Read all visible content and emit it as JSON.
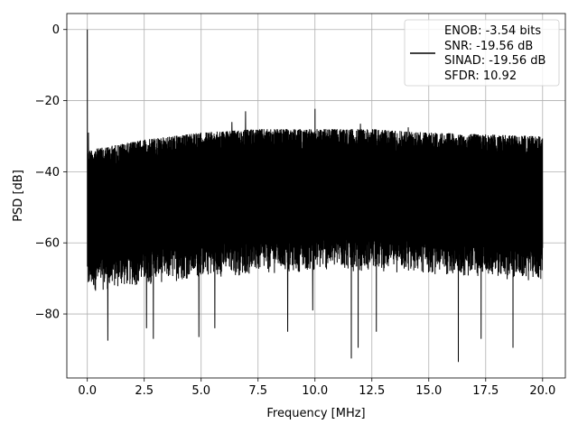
{
  "chart_data": {
    "type": "line",
    "xlabel": "Frequency [MHz]",
    "ylabel": "PSD [dB]",
    "xlim": [
      -0.9,
      21.0
    ],
    "ylim": [
      -98.0,
      4.5
    ],
    "grid": true,
    "x_ticks": [
      {
        "value": 0.0,
        "label": "0.0"
      },
      {
        "value": 2.5,
        "label": "2.5"
      },
      {
        "value": 5.0,
        "label": "5.0"
      },
      {
        "value": 7.5,
        "label": "7.5"
      },
      {
        "value": 10.0,
        "label": "10.0"
      },
      {
        "value": 12.5,
        "label": "12.5"
      },
      {
        "value": 15.0,
        "label": "15.0"
      },
      {
        "value": 17.5,
        "label": "17.5"
      },
      {
        "value": 20.0,
        "label": "20.0"
      }
    ],
    "y_ticks": [
      {
        "value": 0,
        "label": "0"
      },
      {
        "value": -20,
        "label": "−20"
      },
      {
        "value": -40,
        "label": "−40"
      },
      {
        "value": -60,
        "label": "−60"
      },
      {
        "value": -80,
        "label": "−80"
      }
    ],
    "series": [
      {
        "color": "#000000",
        "noise_band": {
          "x_start": 0.0,
          "x_end": 20.0,
          "upper_db": [
            [
              0.0,
              -34
            ],
            [
              2.5,
              -31
            ],
            [
              5.0,
              -29
            ],
            [
              7.5,
              -28
            ],
            [
              10.0,
              -28
            ],
            [
              12.5,
              -28
            ],
            [
              15.0,
              -29
            ],
            [
              17.5,
              -29.5
            ],
            [
              20.0,
              -30
            ]
          ],
          "lower_db": [
            [
              0.0,
              -74
            ],
            [
              2.5,
              -72
            ],
            [
              5.0,
              -70
            ],
            [
              7.5,
              -69
            ],
            [
              10.0,
              -68
            ],
            [
              12.5,
              -68
            ],
            [
              15.0,
              -69
            ],
            [
              17.5,
              -70
            ],
            [
              20.0,
              -71
            ]
          ]
        },
        "peaks": [
          {
            "x": 0.0,
            "y": 0.0
          },
          {
            "x": 0.05,
            "y": -29.0
          },
          {
            "x": 6.35,
            "y": -26.0
          },
          {
            "x": 6.95,
            "y": -23.0
          },
          {
            "x": 10.0,
            "y": -22.3
          },
          {
            "x": 12.0,
            "y": -26.5
          },
          {
            "x": 14.1,
            "y": -27.5
          }
        ],
        "dips": [
          {
            "x": 0.9,
            "y": -87.5
          },
          {
            "x": 2.6,
            "y": -84.0
          },
          {
            "x": 2.9,
            "y": -87.0
          },
          {
            "x": 4.9,
            "y": -86.5
          },
          {
            "x": 5.6,
            "y": -84.0
          },
          {
            "x": 8.8,
            "y": -85.0
          },
          {
            "x": 9.9,
            "y": -79.0
          },
          {
            "x": 11.6,
            "y": -92.5
          },
          {
            "x": 11.9,
            "y": -89.5
          },
          {
            "x": 12.7,
            "y": -85.0
          },
          {
            "x": 16.3,
            "y": -93.5
          },
          {
            "x": 17.3,
            "y": -87.0
          },
          {
            "x": 18.7,
            "y": -89.5
          }
        ]
      }
    ],
    "legend": {
      "placement": "top-right",
      "entries": [
        "ENOB: -3.54 bits",
        "SNR: -19.56 dB",
        "SINAD: -19.56 dB",
        "SFDR: 10.92"
      ]
    }
  }
}
